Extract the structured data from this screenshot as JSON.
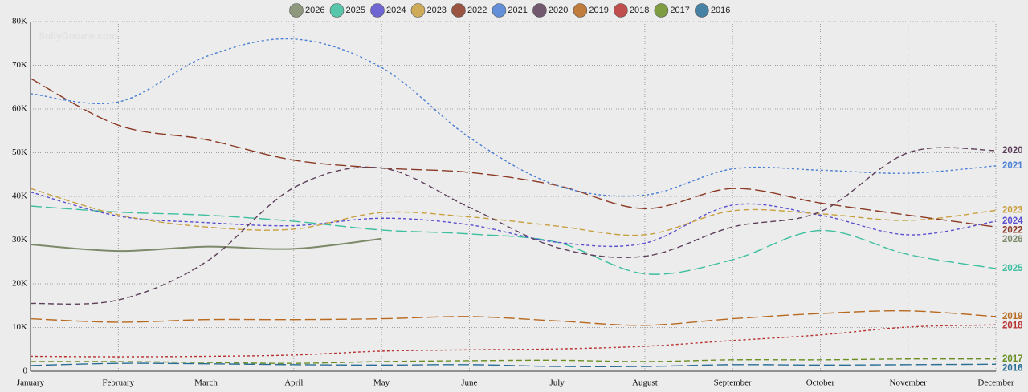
{
  "chart_data": {
    "type": "line",
    "watermark": "SullyGnome.com",
    "categories": [
      "January",
      "February",
      "March",
      "April",
      "May",
      "June",
      "July",
      "August",
      "September",
      "October",
      "November",
      "December"
    ],
    "ylim": [
      0,
      80000
    ],
    "yticks": [
      0,
      {
        "value": 10000,
        "label": "10K"
      },
      {
        "value": 20000,
        "label": "20K"
      },
      {
        "value": 30000,
        "label": "30K"
      },
      {
        "value": 40000,
        "label": "40K"
      },
      {
        "value": 50000,
        "label": "50K"
      },
      {
        "value": 60000,
        "label": "60K"
      },
      {
        "value": 70000,
        "label": "70K"
      },
      {
        "value": 80000,
        "label": "80K"
      }
    ],
    "grid": true,
    "legend": "top",
    "series": [
      {
        "name": "2026",
        "color": "#7d8a6a",
        "values": [
          29000,
          27500,
          28500,
          28000,
          30300,
          null,
          null,
          null,
          null,
          null,
          null,
          null
        ]
      },
      {
        "name": "2025",
        "color": "#3dbfa0",
        "values": [
          37800,
          36400,
          35700,
          34300,
          32300,
          31400,
          29500,
          22300,
          25500,
          32200,
          26700,
          23500
        ]
      },
      {
        "name": "2024",
        "color": "#5a4fcf",
        "values": [
          41000,
          35500,
          34000,
          33300,
          35000,
          33500,
          29500,
          29300,
          38000,
          35700,
          31200,
          34300
        ]
      },
      {
        "name": "2023",
        "color": "#c9a040",
        "values": [
          41800,
          35800,
          33000,
          32500,
          36300,
          35300,
          33200,
          31200,
          36700,
          36000,
          34500,
          36800
        ]
      },
      {
        "name": "2022",
        "color": "#8b3a25",
        "values": [
          67000,
          56300,
          53000,
          48300,
          46500,
          45500,
          42500,
          37200,
          41800,
          38500,
          35700,
          33000
        ]
      },
      {
        "name": "2021",
        "color": "#4a7fd4",
        "values": [
          63500,
          61600,
          72000,
          76000,
          69500,
          53500,
          42500,
          40300,
          46300,
          46000,
          45300,
          47000
        ]
      },
      {
        "name": "2020",
        "color": "#5e3f5a",
        "values": [
          15500,
          16300,
          25000,
          42000,
          46500,
          37500,
          28300,
          26300,
          33000,
          36500,
          50000,
          50500
        ]
      },
      {
        "name": "2019",
        "color": "#b8691f",
        "values": [
          12000,
          11200,
          11800,
          11800,
          12000,
          12500,
          11500,
          10500,
          12000,
          13200,
          13800,
          12500
        ]
      },
      {
        "name": "2018",
        "color": "#b83232",
        "values": [
          3400,
          3300,
          3400,
          3700,
          4600,
          4900,
          5100,
          5700,
          7000,
          8300,
          10100,
          10600
        ]
      },
      {
        "name": "2017",
        "color": "#6b8e23",
        "values": [
          2200,
          2200,
          2000,
          1800,
          2200,
          2400,
          2500,
          2200,
          2600,
          2600,
          2800,
          2800
        ]
      },
      {
        "name": "2016",
        "color": "#2a6e96",
        "values": [
          1300,
          1800,
          1700,
          1500,
          1400,
          1500,
          1100,
          1100,
          1500,
          1400,
          1500,
          1600
        ]
      }
    ]
  }
}
